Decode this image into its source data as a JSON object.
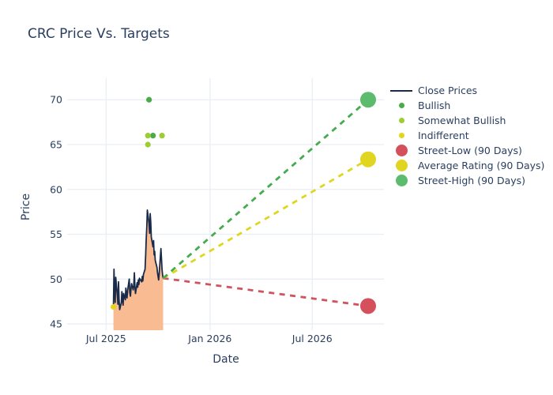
{
  "chart_data": {
    "type": "line",
    "title": "CRC Price Vs. Targets",
    "xlabel": "Date",
    "ylabel": "Price",
    "xaxis": {
      "range": [
        "2025-04-23",
        "2026-11-05"
      ],
      "ticks": [
        {
          "date": "2025-07-01",
          "label": "Jul 2025"
        },
        {
          "date": "2026-01-01",
          "label": "Jan 2026"
        },
        {
          "date": "2026-07-01",
          "label": "Jul 2026"
        }
      ],
      "grid": true
    },
    "yaxis": {
      "range": [
        44.3,
        72.4
      ],
      "ticks": [
        45,
        50,
        55,
        60,
        65,
        70
      ],
      "grid": true
    },
    "close_prices": {
      "name": "Close Prices",
      "color": "#1a2b49",
      "fill_color": "#f9bb92",
      "dates": [
        "2025-07-14",
        "2025-07-15",
        "2025-07-16",
        "2025-07-17",
        "2025-07-18",
        "2025-07-21",
        "2025-07-22",
        "2025-07-23",
        "2025-07-24",
        "2025-07-25",
        "2025-07-28",
        "2025-07-29",
        "2025-07-30",
        "2025-07-31",
        "2025-08-01",
        "2025-08-04",
        "2025-08-05",
        "2025-08-06",
        "2025-08-07",
        "2025-08-08",
        "2025-08-11",
        "2025-08-12",
        "2025-08-13",
        "2025-08-14",
        "2025-08-15",
        "2025-08-18",
        "2025-08-19",
        "2025-08-20",
        "2025-08-21",
        "2025-08-22",
        "2025-08-25",
        "2025-08-26",
        "2025-08-27",
        "2025-08-28",
        "2025-08-29",
        "2025-09-02",
        "2025-09-03",
        "2025-09-04",
        "2025-09-05",
        "2025-09-08",
        "2025-09-09",
        "2025-09-10",
        "2025-09-11",
        "2025-09-12",
        "2025-09-15",
        "2025-09-16",
        "2025-09-17",
        "2025-09-18",
        "2025-09-19",
        "2025-09-22",
        "2025-09-23",
        "2025-09-24",
        "2025-09-25",
        "2025-09-26",
        "2025-09-29",
        "2025-09-30",
        "2025-10-01",
        "2025-10-02",
        "2025-10-03",
        "2025-10-06",
        "2025-10-07",
        "2025-10-08",
        "2025-10-09",
        "2025-10-10"
      ],
      "values": [
        46.9,
        51.1,
        48.7,
        47.4,
        50.2,
        48.1,
        47.2,
        49.7,
        47.6,
        46.6,
        47.4,
        48.6,
        47.8,
        47.1,
        48.4,
        47.7,
        49.0,
        48.2,
        47.9,
        48.7,
        50.0,
        48.5,
        48.1,
        48.9,
        49.5,
        48.8,
        49.3,
        50.7,
        49.1,
        48.4,
        49.6,
        49.1,
        49.9,
        49.4,
        50.1,
        49.7,
        50.3,
        49.8,
        50.5,
        51.1,
        52.7,
        54.5,
        55.8,
        57.7,
        56.2,
        55.1,
        57.3,
        56.4,
        54.7,
        53.6,
        54.3,
        52.7,
        53.1,
        52.1,
        51.3,
        50.7,
        50.3,
        49.9,
        50.6,
        53.4,
        52.3,
        51.1,
        50.5,
        50.1
      ]
    },
    "ratings": [
      {
        "key": "bullish",
        "name": "Bullish",
        "color": "#4aab49",
        "points": [
          {
            "date": "2025-09-15",
            "price": 70
          },
          {
            "date": "2025-09-22",
            "price": 66
          }
        ]
      },
      {
        "key": "somewhat-bullish",
        "name": "Somewhat Bullish",
        "color": "#9ccd32",
        "points": [
          {
            "date": "2025-09-13",
            "price": 66
          },
          {
            "date": "2025-09-13",
            "price": 65
          },
          {
            "date": "2025-10-08",
            "price": 66
          }
        ]
      },
      {
        "key": "indifferent",
        "name": "Indifferent",
        "color": "#e2d51e",
        "points": [
          {
            "date": "2025-07-14",
            "price": 46.9
          }
        ]
      }
    ],
    "targets": {
      "start": {
        "date": "2025-10-10",
        "price": 50.1
      },
      "end_date": "2026-10-08",
      "items": [
        {
          "key": "street-low",
          "name": "Street-Low (90 Days)",
          "price": 47.0,
          "line_color": "#cf5460",
          "marker_color": "#d4505c"
        },
        {
          "key": "average-rating",
          "name": "Average Rating (90 Days)",
          "price": 63.35,
          "line_color": "#ddd71f",
          "marker_color": "#e0d622"
        },
        {
          "key": "street-high",
          "name": "Street-High (90 Days)",
          "price": 70.0,
          "line_color": "#44ab4f",
          "marker_color": "#5cbb6d"
        }
      ]
    }
  },
  "legend": {
    "items": [
      {
        "key": "close-prices",
        "label": "Close Prices",
        "swatch": "line",
        "color": "#1a2b49"
      },
      {
        "key": "bullish",
        "label": "Bullish",
        "swatch": "dot",
        "color": "#4aab49"
      },
      {
        "key": "somewhat-bullish",
        "label": "Somewhat Bullish",
        "swatch": "dot",
        "color": "#9ccd32"
      },
      {
        "key": "indifferent",
        "label": "Indifferent",
        "swatch": "dot",
        "color": "#e2d51e"
      },
      {
        "key": "street-low",
        "label": "Street-Low (90 Days)",
        "swatch": "circle",
        "color": "#d4505c"
      },
      {
        "key": "average-rating",
        "label": "Average Rating (90 Days)",
        "swatch": "circle",
        "color": "#e0d622"
      },
      {
        "key": "street-high",
        "label": "Street-High (90 Days)",
        "swatch": "circle",
        "color": "#5cbb6d"
      }
    ]
  },
  "colors": {
    "text": "#2a3f5f",
    "grid": "#e9eef5",
    "background": "#ffffff"
  }
}
